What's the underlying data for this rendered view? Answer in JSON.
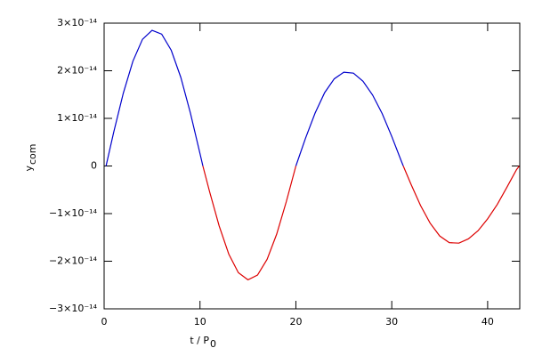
{
  "chart_data": {
    "type": "line",
    "xlabel": "t / P",
    "xlabel_sub": "0",
    "ylabel": "y",
    "ylabel_sub": "com",
    "x": [
      0.2,
      1,
      2,
      3,
      4,
      5,
      6,
      7,
      8,
      9,
      10,
      10.3,
      11,
      12,
      13,
      14,
      15,
      16,
      17,
      18,
      19,
      20,
      21,
      22,
      23,
      24,
      25,
      26,
      27,
      28,
      29,
      30,
      31,
      31.2,
      32,
      33,
      34,
      35,
      36,
      37,
      38,
      39,
      40,
      41,
      42,
      43,
      43.3
    ],
    "series": [
      {
        "color": "#0000cc",
        "values": [
          0,
          7.1e-15,
          1.53e-14,
          2.2e-14,
          2.66e-14,
          2.85e-14,
          2.77e-14,
          2.43e-14,
          1.86e-14,
          1.11e-14,
          2.6e-15,
          0,
          null,
          null,
          null,
          null,
          null,
          null,
          null,
          null,
          null,
          0,
          5.8e-15,
          1.11e-14,
          1.54e-14,
          1.83e-14,
          1.97e-14,
          1.95e-14,
          1.78e-14,
          1.49e-14,
          1.1e-14,
          6.2e-15,
          1e-15,
          0,
          null,
          null,
          null,
          null,
          null,
          null,
          null,
          null,
          null,
          null,
          null,
          null,
          null
        ]
      },
      {
        "color": "#dd0000",
        "values": [
          null,
          null,
          null,
          null,
          null,
          null,
          null,
          null,
          null,
          null,
          null,
          0,
          -5.4e-15,
          -1.26e-14,
          -1.85e-14,
          -2.24e-14,
          -2.39e-14,
          -2.29e-14,
          -1.96e-14,
          -1.43e-14,
          -7.5e-15,
          0,
          null,
          null,
          null,
          null,
          null,
          null,
          null,
          null,
          null,
          null,
          null,
          0,
          -3.8e-15,
          -8.3e-15,
          -1.2e-14,
          -1.47e-14,
          -1.61e-14,
          -1.62e-14,
          -1.53e-14,
          -1.36e-14,
          -1.11e-14,
          -8.1e-15,
          -4.5e-15,
          -8e-16,
          0
        ]
      }
    ],
    "xlim": [
      0,
      43.35
    ],
    "xticks": [
      0,
      10,
      20,
      30,
      40
    ],
    "ylim": [
      -3e-14,
      3e-14
    ],
    "yticks": [
      {
        "value": -3e-14,
        "label": "−3×10⁻¹⁴"
      },
      {
        "value": -2e-14,
        "label": "−2×10⁻¹⁴"
      },
      {
        "value": -1e-14,
        "label": "−1×10⁻¹⁴"
      },
      0,
      {
        "value": 1e-14,
        "label": "1×10⁻¹⁴"
      },
      {
        "value": 2e-14,
        "label": "2×10⁻¹⁴"
      },
      {
        "value": 3e-14,
        "label": "3×10⁻¹⁴"
      }
    ]
  }
}
